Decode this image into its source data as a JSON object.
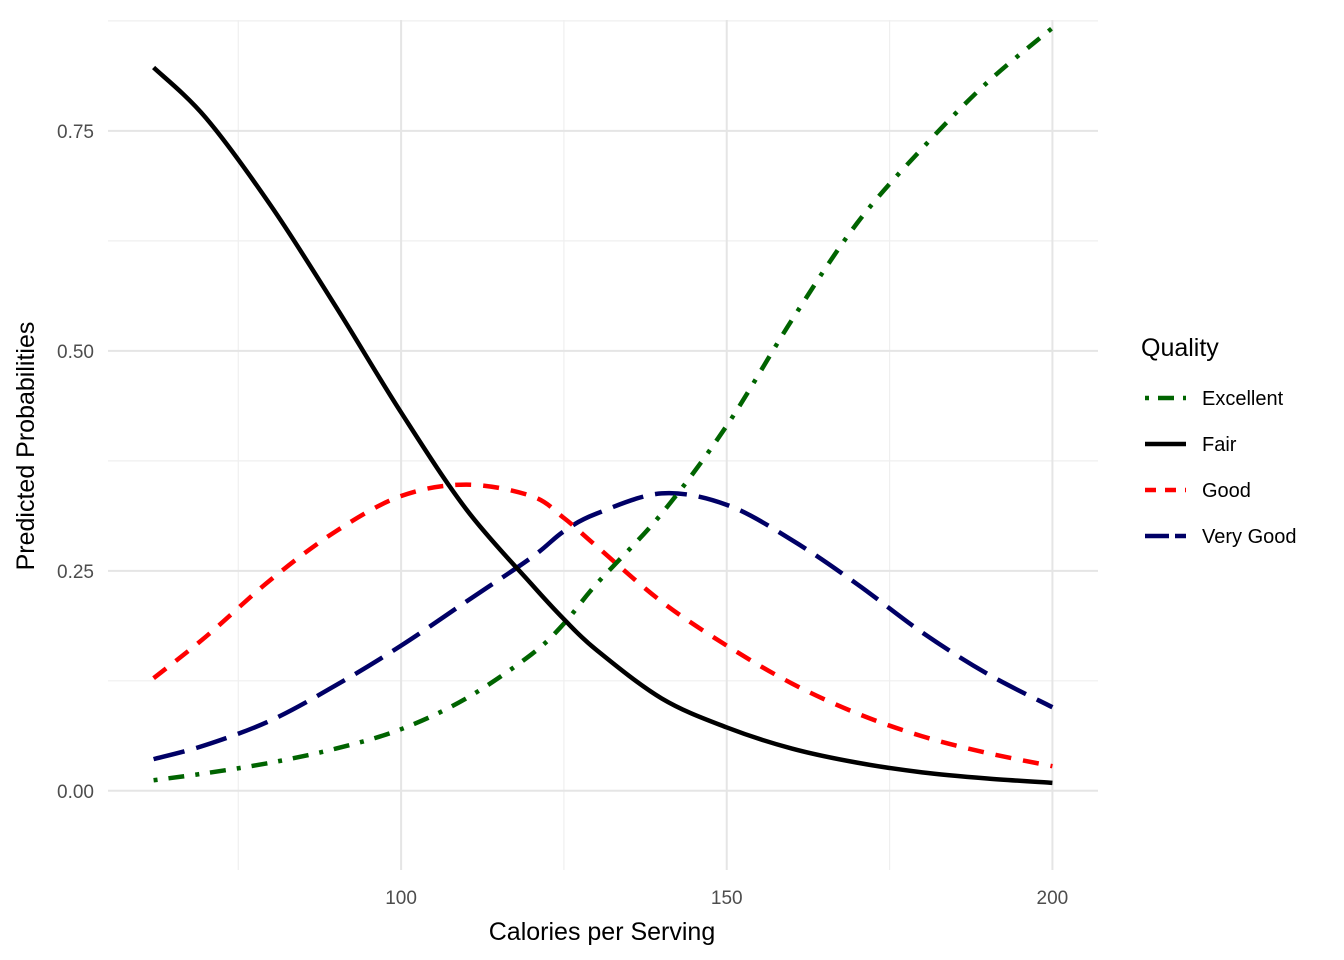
{
  "chart_data": {
    "type": "line",
    "title": "",
    "xlabel": "Calories per Serving",
    "ylabel": "Predicted Probabilities",
    "xlim": [
      55,
      207
    ],
    "ylim": [
      -0.09,
      0.876
    ],
    "x_ticks": [
      100,
      150,
      200
    ],
    "x_tick_labels": [
      "100",
      "150",
      "200"
    ],
    "x_minor_ticks": [
      75,
      125,
      175
    ],
    "y_ticks": [
      0.0,
      0.25,
      0.5,
      0.75
    ],
    "y_tick_labels": [
      "0.00",
      "0.25",
      "0.50",
      "0.75"
    ],
    "y_minor_ticks": [
      0.125,
      0.375,
      0.625,
      0.875
    ],
    "grid": true,
    "legend": {
      "title": "Quality",
      "placement": "right"
    },
    "series": [
      {
        "name": "Excellent",
        "color": "#006400",
        "dash": "dotdash",
        "x": [
          62,
          70,
          80,
          90,
          100,
          110,
          120,
          125,
          130,
          140,
          150,
          160,
          170,
          180,
          190,
          200
        ],
        "values": [
          0.012,
          0.02,
          0.032,
          0.048,
          0.07,
          0.105,
          0.155,
          0.19,
          0.235,
          0.315,
          0.415,
          0.535,
          0.645,
          0.73,
          0.805,
          0.867
        ]
      },
      {
        "name": "Fair",
        "color": "#000000",
        "dash": "solid",
        "x": [
          62,
          70,
          80,
          90,
          100,
          110,
          120,
          125,
          130,
          140,
          150,
          160,
          170,
          180,
          190,
          200
        ],
        "values": [
          0.822,
          0.765,
          0.665,
          0.55,
          0.43,
          0.32,
          0.235,
          0.195,
          0.16,
          0.105,
          0.072,
          0.048,
          0.032,
          0.021,
          0.014,
          0.009
        ]
      },
      {
        "name": "Good",
        "color": "#ff0000",
        "dash": "dashed",
        "x": [
          62,
          70,
          80,
          90,
          100,
          110,
          120,
          125,
          130,
          140,
          150,
          160,
          170,
          180,
          190,
          200
        ],
        "values": [
          0.128,
          0.175,
          0.24,
          0.295,
          0.335,
          0.348,
          0.335,
          0.31,
          0.278,
          0.215,
          0.165,
          0.122,
          0.088,
          0.062,
          0.043,
          0.028
        ]
      },
      {
        "name": "Very Good",
        "color": "#000066",
        "dash": "longdash",
        "x": [
          62,
          70,
          80,
          90,
          100,
          110,
          120,
          125,
          130,
          140,
          150,
          160,
          170,
          180,
          190,
          200
        ],
        "values": [
          0.036,
          0.052,
          0.08,
          0.12,
          0.165,
          0.215,
          0.265,
          0.295,
          0.315,
          0.338,
          0.325,
          0.285,
          0.235,
          0.18,
          0.133,
          0.095
        ]
      }
    ]
  }
}
